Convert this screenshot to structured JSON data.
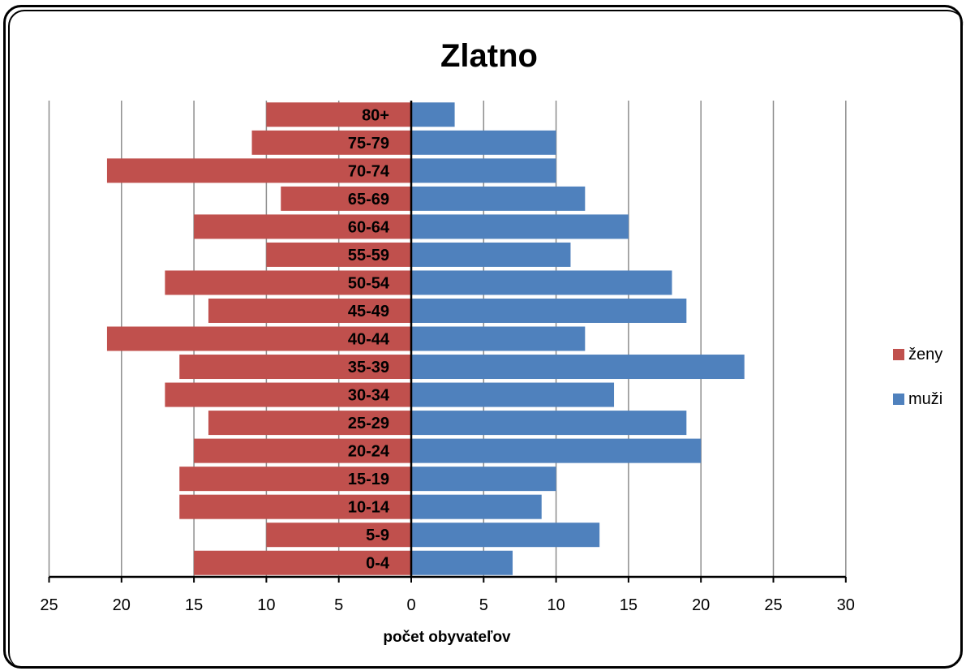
{
  "chart_data": {
    "type": "bar",
    "orientation": "horizontal",
    "title": "Zlatno",
    "xlabel": "počet obyvateľov",
    "ylabel": "",
    "xlim": [
      -25,
      30
    ],
    "x_ticks": [
      -25,
      -20,
      -15,
      -10,
      -5,
      0,
      5,
      10,
      15,
      20,
      25,
      30
    ],
    "x_tick_labels": [
      "25",
      "20",
      "15",
      "10",
      "5",
      "0",
      "5",
      "10",
      "15",
      "20",
      "25",
      "30"
    ],
    "grid": true,
    "legend_position": "right",
    "categories": [
      "80+",
      "75-79",
      "70-74",
      "65-69",
      "60-64",
      "55-59",
      "50-54",
      "45-49",
      "40-44",
      "35-39",
      "30-34",
      "25-29",
      "20-24",
      "15-19",
      "10-14",
      "5-9",
      "0-4"
    ],
    "series": [
      {
        "name": "ženy",
        "color": "#C0504D",
        "direction": "left",
        "values": [
          10,
          11,
          21,
          9,
          15,
          10,
          17,
          14,
          21,
          16,
          17,
          14,
          15,
          16,
          16,
          10,
          15
        ]
      },
      {
        "name": "muži",
        "color": "#4F81BD",
        "direction": "right",
        "values": [
          3,
          10,
          10,
          12,
          15,
          11,
          18,
          19,
          12,
          23,
          14,
          19,
          20,
          10,
          9,
          13,
          7
        ]
      }
    ]
  }
}
